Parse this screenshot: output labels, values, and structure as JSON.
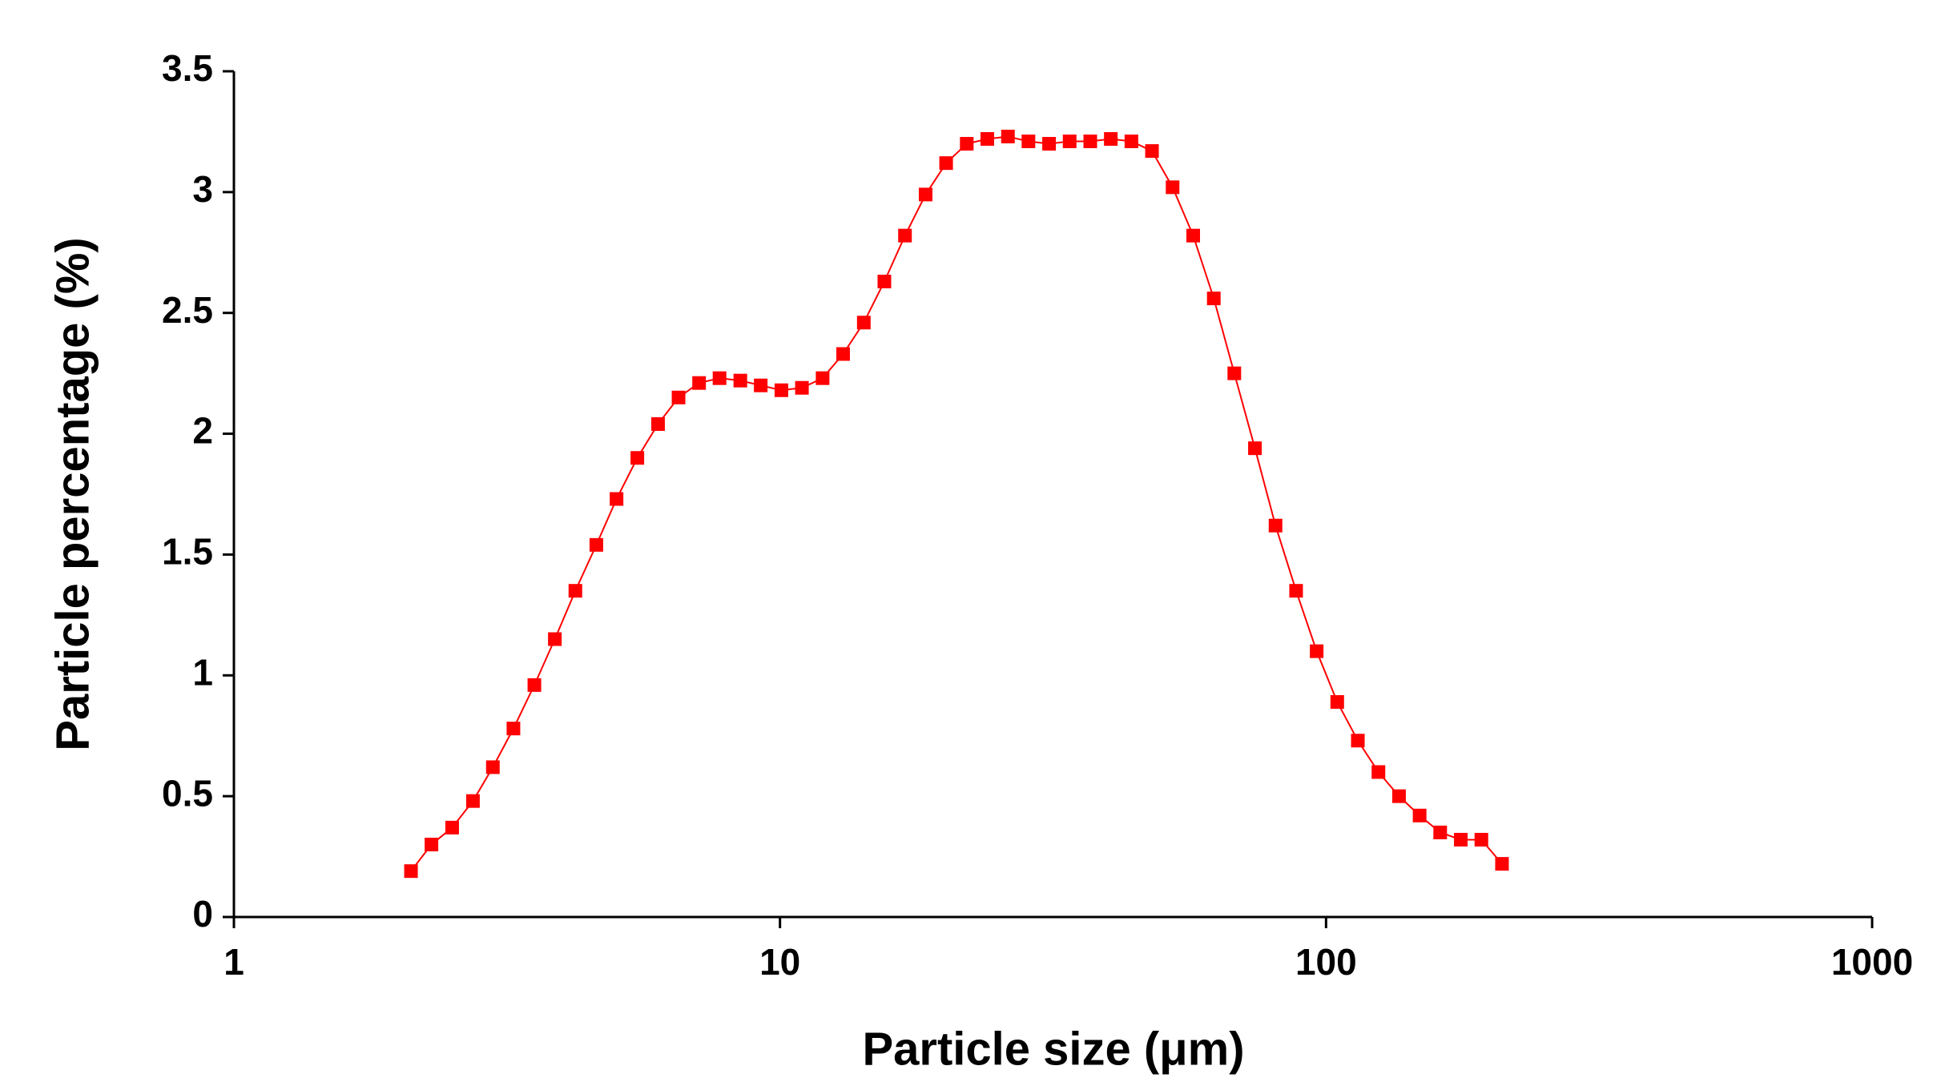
{
  "chart_data": {
    "type": "line",
    "x_label": "Particle size (μm)",
    "y_label": "Particle percentage (%)",
    "x_log": true,
    "xlim": [
      1,
      1000
    ],
    "xticks": [
      1,
      10,
      100,
      1000
    ],
    "ylim": [
      0,
      3.5
    ],
    "yticks": [
      0,
      0.5,
      1,
      1.5,
      2,
      2.5,
      3,
      3.5
    ],
    "grid": false,
    "series": [
      {
        "color": "#ff0000",
        "x": [
          2.11,
          2.3,
          2.51,
          2.74,
          2.98,
          3.25,
          3.55,
          3.87,
          4.22,
          4.61,
          5.02,
          5.48,
          5.98,
          6.52,
          7.11,
          7.75,
          8.46,
          9.22,
          10.06,
          10.97,
          11.97,
          13.05,
          14.24,
          15.53,
          16.94,
          18.48,
          20.15,
          21.98,
          23.97,
          26.15,
          28.51,
          31.1,
          33.92,
          37.0,
          40.35,
          44.01,
          48.0,
          52.36,
          57.11,
          62.29,
          67.92,
          74.09,
          80.81,
          88.14,
          96.12,
          104.83,
          114.35,
          124.72,
          136.03,
          148.37,
          161.81,
          176.5,
          192.5,
          210.0
        ],
        "values": [
          0.19,
          0.3,
          0.37,
          0.48,
          0.62,
          0.78,
          0.96,
          1.15,
          1.35,
          1.54,
          1.73,
          1.9,
          2.04,
          2.15,
          2.21,
          2.23,
          2.22,
          2.2,
          2.18,
          2.19,
          2.23,
          2.33,
          2.46,
          2.63,
          2.82,
          2.99,
          3.12,
          3.2,
          3.22,
          3.23,
          3.21,
          3.2,
          3.21,
          3.21,
          3.22,
          3.21,
          3.17,
          3.02,
          2.82,
          2.56,
          2.25,
          1.94,
          1.62,
          1.35,
          1.1,
          0.89,
          0.73,
          0.6,
          0.5,
          0.42,
          0.35,
          0.32,
          0.32,
          0.22
        ]
      }
    ]
  }
}
